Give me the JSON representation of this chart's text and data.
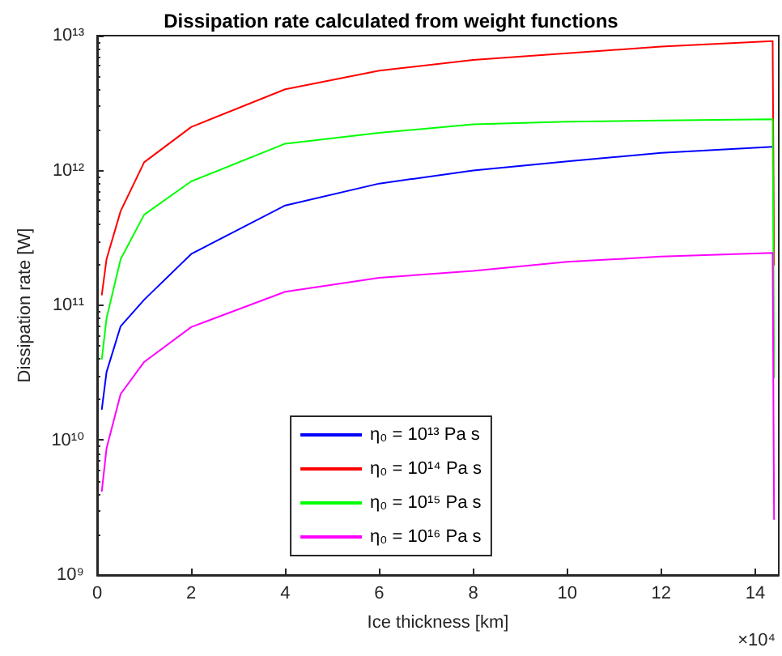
{
  "chart_data": {
    "type": "line",
    "title": "Dissipation rate calculated from weight functions",
    "xlabel": "Ice thickness [km]",
    "ylabel": "Dissipation rate [W]",
    "annotations": [
      "×10⁴"
    ],
    "log": "y",
    "grid": false,
    "legend": "bottom",
    "marker": "none",
    "line_style": "solid",
    "xlim": [
      0,
      14.5
    ],
    "xticks": [
      0,
      2,
      4,
      6,
      8,
      10,
      12,
      14
    ],
    "ylim": [
      1000000000,
      10000000000000
    ],
    "yticks": [
      {
        "value": 1000000000,
        "label": "10⁹"
      },
      {
        "value": 10000000000,
        "label": "10¹⁰"
      },
      {
        "value": 100000000000,
        "label": "10¹¹"
      },
      {
        "value": 1000000000000,
        "label": "10¹²"
      },
      {
        "value": 10000000000000,
        "label": "10¹³"
      }
    ],
    "x": [
      0.1,
      0.2,
      0.5,
      1,
      2,
      4,
      6,
      8,
      10,
      12,
      14.37,
      14.4
    ],
    "series": [
      {
        "name": "η₀ = 10¹³ Pa s",
        "color": "#0000ff",
        "values": [
          17000000000,
          32000000000,
          70000000000,
          110000000000,
          240000000000,
          550000000000,
          800000000000,
          1000000000000,
          1170000000000,
          1350000000000,
          1500000000000,
          null
        ]
      },
      {
        "name": "η₀ = 10¹⁴ Pa s",
        "color": "#ff0000",
        "values": [
          120000000000,
          220000000000,
          500000000000,
          1150000000000,
          2100000000000,
          4000000000000,
          5500000000000,
          6600000000000,
          7400000000000,
          8300000000000,
          9100000000000,
          200000000000
        ]
      },
      {
        "name": "η₀ = 10¹⁵ Pa s",
        "color": "#00ff00",
        "values": [
          40000000000,
          80000000000,
          220000000000,
          470000000000,
          830000000000,
          1580000000000,
          1900000000000,
          2200000000000,
          2300000000000,
          2350000000000,
          2400000000000,
          29000000000
        ]
      },
      {
        "name": "η₀ = 10¹⁶ Pa s",
        "color": "#ff00ff",
        "values": [
          4200000000,
          8700000000,
          22000000000,
          38000000000,
          69000000000,
          126000000000,
          160000000000,
          180000000000,
          210000000000,
          230000000000,
          245000000000,
          2600000000
        ]
      }
    ]
  }
}
